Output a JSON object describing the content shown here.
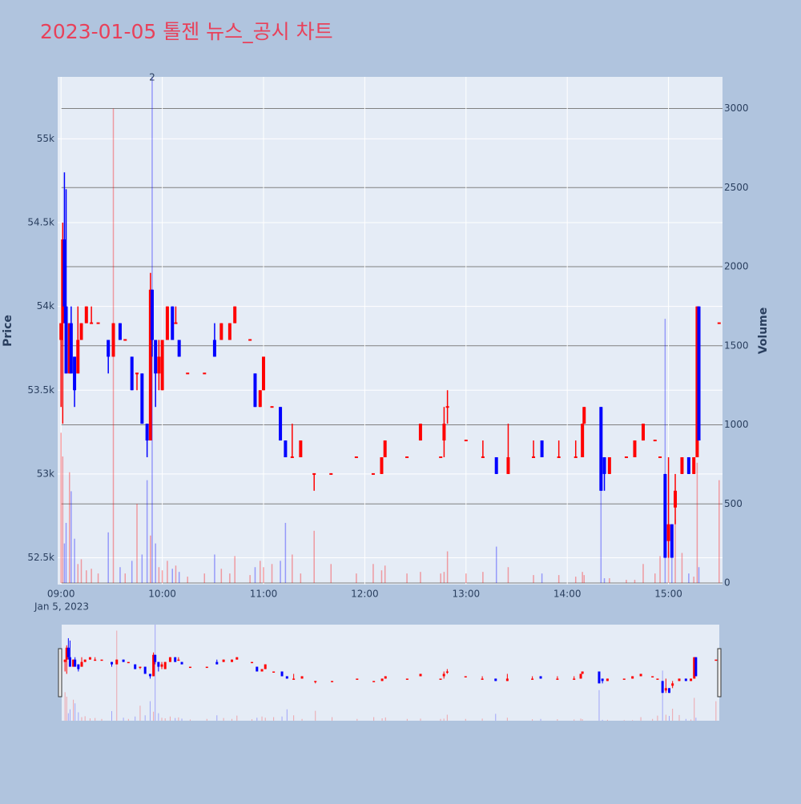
{
  "chart_data": {
    "type": "candlestick",
    "title": "2023-01-05 톨젠 뉴스_공시 차트",
    "y_label": "Price",
    "y2_label": "Volume",
    "up_color": "#ff0000",
    "down_color": "#0000ff",
    "xlim": [
      "08:58",
      "15:32"
    ],
    "xticks": [
      "09:00",
      "10:00",
      "11:00",
      "12:00",
      "13:00",
      "14:00",
      "15:00"
    ],
    "x_date_label": "Jan 5, 2023",
    "ylim": [
      52340,
      55370
    ],
    "yticks": [
      {
        "value": 52500,
        "label": "52.5k"
      },
      {
        "value": 53000,
        "label": "53k"
      },
      {
        "value": 53500,
        "label": "53.5k"
      },
      {
        "value": 54000,
        "label": "54k"
      },
      {
        "value": 54500,
        "label": "54.5k"
      },
      {
        "value": 55000,
        "label": "55k"
      }
    ],
    "y2lim": [
      0,
      3200
    ],
    "y2ticks": [
      0,
      500,
      1000,
      1500,
      2000,
      2500,
      3000
    ],
    "annotation": {
      "text": "2",
      "x": "09:54"
    },
    "x": [
      "09:00",
      "09:01",
      "09:02",
      "09:03",
      "09:05",
      "09:06",
      "09:08",
      "09:10",
      "09:12",
      "09:15",
      "09:18",
      "09:22",
      "09:28",
      "09:31",
      "09:35",
      "09:38",
      "09:42",
      "09:45",
      "09:48",
      "09:51",
      "09:53",
      "09:54",
      "09:56",
      "09:58",
      "10:00",
      "10:03",
      "10:06",
      "10:08",
      "10:10",
      "10:15",
      "10:25",
      "10:31",
      "10:35",
      "10:40",
      "10:43",
      "10:52",
      "10:55",
      "10:58",
      "11:00",
      "11:05",
      "11:10",
      "11:13",
      "11:17",
      "11:22",
      "11:30",
      "11:40",
      "11:55",
      "12:05",
      "12:10",
      "12:12",
      "12:25",
      "12:33",
      "12:45",
      "12:47",
      "12:49",
      "13:00",
      "13:10",
      "13:18",
      "13:25",
      "13:40",
      "13:45",
      "13:55",
      "14:05",
      "14:09",
      "14:10",
      "14:20",
      "14:22",
      "14:25",
      "14:35",
      "14:40",
      "14:45",
      "14:52",
      "14:55",
      "14:58",
      "15:00",
      "15:02",
      "15:04",
      "15:08",
      "15:12",
      "15:15",
      "15:17",
      "15:18",
      "15:30"
    ],
    "open": [
      53800,
      53900,
      54400,
      54000,
      53600,
      53900,
      53700,
      53600,
      53800,
      53900,
      53900,
      53900,
      53800,
      53700,
      53900,
      53800,
      53700,
      53600,
      53600,
      53300,
      53200,
      54100,
      53800,
      53600,
      53500,
      53800,
      54000,
      53900,
      53800,
      53600,
      53600,
      53800,
      53800,
      53800,
      53900,
      53800,
      53600,
      53400,
      53500,
      53400,
      53400,
      53200,
      53100,
      53100,
      53000,
      53000,
      53100,
      53000,
      53000,
      53100,
      53100,
      53200,
      53100,
      53200,
      53400,
      53200,
      53100,
      53100,
      53000,
      53100,
      53200,
      53100,
      53100,
      53100,
      53300,
      53400,
      53100,
      53000,
      53100,
      53100,
      53200,
      53200,
      53100,
      53000,
      52600,
      52700,
      52800,
      53000,
      53100,
      53000,
      53100,
      54000,
      53900
    ],
    "high": [
      53900,
      54500,
      54800,
      54700,
      53900,
      54000,
      53700,
      54000,
      53900,
      54000,
      54000,
      53900,
      53800,
      53900,
      53900,
      53800,
      53700,
      53600,
      53600,
      53300,
      54200,
      54100,
      53800,
      53800,
      53800,
      54000,
      54000,
      54000,
      53800,
      53600,
      53600,
      53900,
      53900,
      53900,
      54000,
      53800,
      53600,
      53500,
      53700,
      53400,
      53400,
      53200,
      53300,
      53200,
      53000,
      53000,
      53100,
      53000,
      53100,
      53200,
      53100,
      53300,
      53100,
      53400,
      53500,
      53200,
      53200,
      53100,
      53300,
      53200,
      53200,
      53200,
      53200,
      53300,
      53400,
      53400,
      53100,
      53100,
      53100,
      53200,
      53300,
      53200,
      53100,
      53000,
      53100,
      52700,
      53000,
      53100,
      53100,
      53100,
      54000,
      54000,
      53900
    ],
    "low": [
      53400,
      53300,
      53900,
      53600,
      53600,
      53600,
      53400,
      53600,
      53800,
      53900,
      53900,
      53900,
      53600,
      53700,
      53800,
      53800,
      53500,
      53500,
      53300,
      53100,
      53200,
      53700,
      53400,
      53500,
      53500,
      53800,
      53800,
      53900,
      53700,
      53600,
      53600,
      53700,
      53800,
      53800,
      53900,
      53800,
      53400,
      53400,
      53500,
      53400,
      53200,
      53100,
      53100,
      53100,
      52900,
      53000,
      53100,
      53000,
      53000,
      53100,
      53100,
      53200,
      53100,
      53100,
      53300,
      53200,
      53100,
      53000,
      53000,
      53100,
      53100,
      53100,
      53100,
      53100,
      53300,
      52900,
      52900,
      53000,
      53100,
      53100,
      53200,
      53200,
      53100,
      52500,
      52500,
      52500,
      52700,
      53000,
      53000,
      53000,
      53100,
      53200,
      53900
    ],
    "close": [
      53900,
      54400,
      54000,
      53600,
      53900,
      53600,
      53500,
      53800,
      53900,
      54000,
      53900,
      53900,
      53700,
      53900,
      53800,
      53800,
      53500,
      53600,
      53300,
      53200,
      54100,
      53800,
      53600,
      53700,
      53800,
      54000,
      53800,
      53900,
      53700,
      53600,
      53600,
      53700,
      53900,
      53900,
      54000,
      53800,
      53400,
      53500,
      53700,
      53400,
      53200,
      53100,
      53100,
      53200,
      53000,
      53000,
      53100,
      53000,
      53100,
      53200,
      53100,
      53300,
      53100,
      53300,
      53400,
      53200,
      53100,
      53000,
      53100,
      53100,
      53100,
      53100,
      53100,
      53300,
      53400,
      52900,
      53000,
      53100,
      53100,
      53200,
      53300,
      53200,
      53100,
      52500,
      52700,
      52500,
      52900,
      53100,
      53000,
      53100,
      54000,
      53200,
      53900
    ],
    "volume": [
      950,
      800,
      250,
      380,
      700,
      580,
      280,
      120,
      150,
      80,
      90,
      60,
      320,
      3000,
      100,
      60,
      140,
      500,
      180,
      650,
      300,
      3200,
      250,
      100,
      80,
      140,
      90,
      110,
      70,
      40,
      60,
      180,
      90,
      60,
      170,
      50,
      100,
      140,
      100,
      120,
      140,
      380,
      180,
      60,
      330,
      120,
      60,
      120,
      80,
      110,
      60,
      70,
      60,
      70,
      200,
      60,
      70,
      230,
      100,
      50,
      60,
      50,
      40,
      70,
      50,
      1020,
      30,
      30,
      20,
      20,
      120,
      60,
      170,
      1670,
      200,
      160,
      400,
      190,
      60,
      40,
      760,
      100,
      650
    ]
  }
}
